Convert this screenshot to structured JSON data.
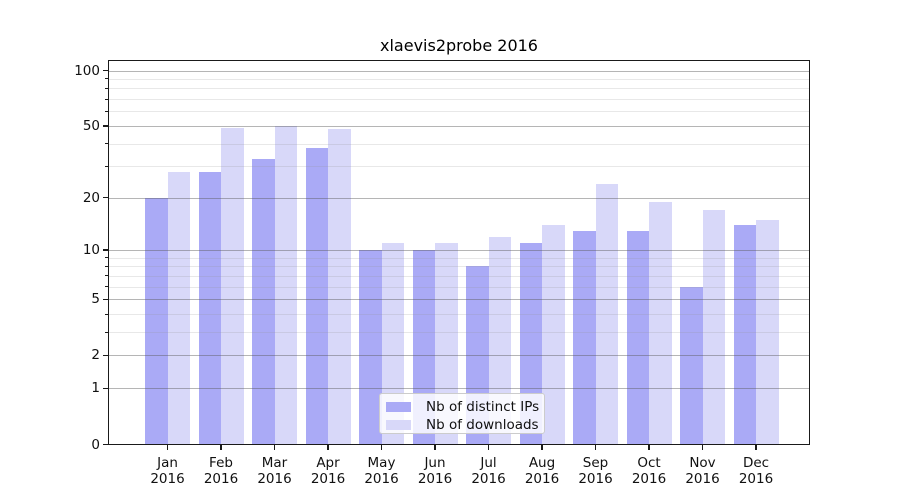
{
  "title": "xlaevis2probe 2016",
  "colors": {
    "ips": "#aaaaf6",
    "downloads": "#d8d8f9",
    "spine": "#1a1a1a",
    "grid_major": "rgba(90,90,90,0.45)",
    "grid_minor": "rgba(150,150,150,0.22)",
    "text": "#111111",
    "background": "#ffffff"
  },
  "legend": {
    "items": [
      {
        "label": "Nb of distinct IPs",
        "color_key": "ips"
      },
      {
        "label": "Nb of downloads",
        "color_key": "downloads"
      }
    ]
  },
  "x_axis": {
    "months": [
      "Jan",
      "Feb",
      "Mar",
      "Apr",
      "May",
      "Jun",
      "Jul",
      "Aug",
      "Sep",
      "Oct",
      "Nov",
      "Dec"
    ],
    "year": "2016"
  },
  "y_axis": {
    "major_ticks": [
      0,
      1,
      2,
      5,
      10,
      20,
      50,
      100
    ],
    "minor_ticks": [
      3,
      4,
      6,
      7,
      8,
      9,
      30,
      40,
      60,
      70,
      80,
      90
    ],
    "scale": "log1p",
    "max": 114
  },
  "chart_data": {
    "type": "bar",
    "title": "xlaevis2probe 2016",
    "categories": [
      "Jan 2016",
      "Feb 2016",
      "Mar 2016",
      "Apr 2016",
      "May 2016",
      "Jun 2016",
      "Jul 2016",
      "Aug 2016",
      "Sep 2016",
      "Oct 2016",
      "Nov 2016",
      "Dec 2016"
    ],
    "series": [
      {
        "name": "Nb of distinct IPs",
        "key": "ips",
        "values": [
          20,
          28,
          33,
          38,
          10,
          10,
          8,
          11,
          13,
          13,
          6,
          14
        ]
      },
      {
        "name": "Nb of downloads",
        "key": "downloads",
        "values": [
          28,
          49,
          50,
          48,
          11,
          11,
          12,
          14,
          24,
          19,
          17,
          15
        ]
      }
    ],
    "xlabel": "",
    "ylabel": "",
    "yscale": "log1p",
    "yticks": [
      0,
      1,
      2,
      5,
      10,
      20,
      50,
      100
    ],
    "ylim": [
      0,
      114
    ],
    "grid": true,
    "legend_position": "lower center"
  }
}
